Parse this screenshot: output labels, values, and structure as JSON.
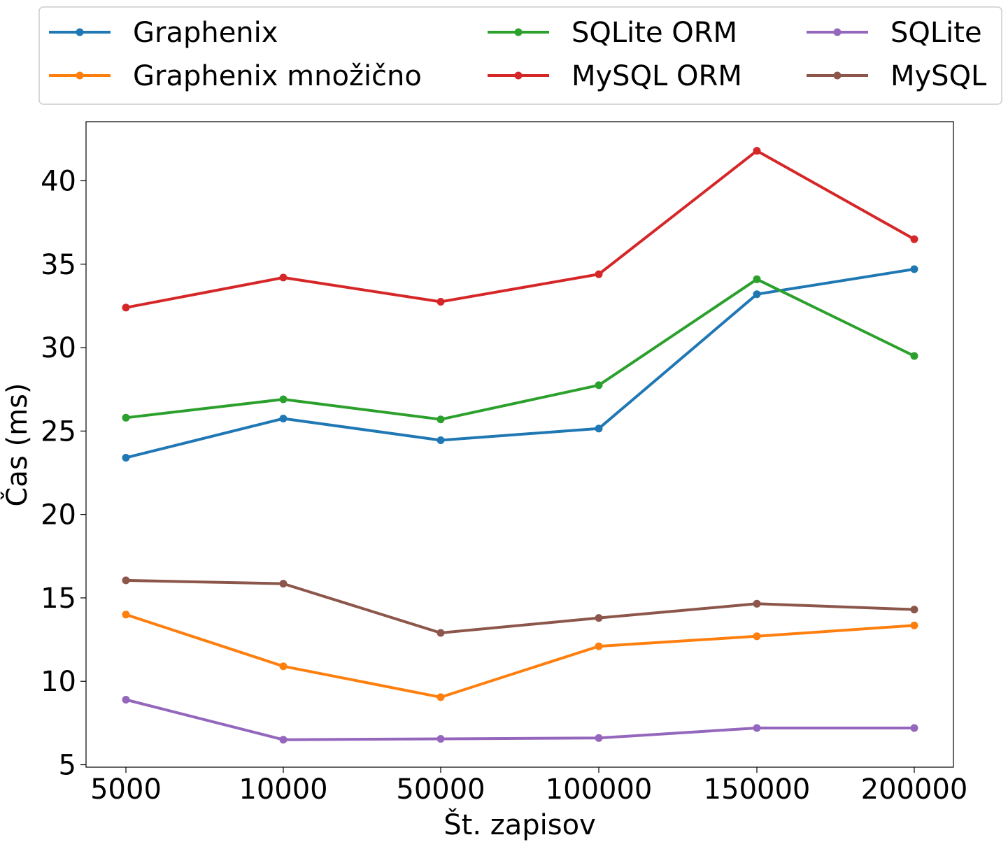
{
  "chart_data": {
    "type": "line",
    "xlabel": "Št. zapisov",
    "ylabel": "Čas (ms)",
    "categories": [
      "5000",
      "10000",
      "50000",
      "100000",
      "150000",
      "200000"
    ],
    "ylim": [
      4.9,
      43.5
    ],
    "yticks": [
      5,
      10,
      15,
      20,
      25,
      30,
      35,
      40
    ],
    "grid": false,
    "legend_position": "top, above the plot, 3 columns",
    "series": [
      {
        "name": "Graphenix",
        "color": "#1f77b4",
        "values": [
          23.4,
          25.75,
          24.45,
          25.15,
          33.2,
          34.7
        ]
      },
      {
        "name": "Graphenix množično",
        "color": "#ff7f0e",
        "values": [
          14.0,
          10.9,
          9.05,
          12.1,
          12.7,
          13.35
        ]
      },
      {
        "name": "SQLite ORM",
        "color": "#2ca02c",
        "values": [
          25.8,
          26.9,
          25.7,
          27.75,
          34.1,
          29.5
        ]
      },
      {
        "name": "MySQL ORM",
        "color": "#d62728",
        "values": [
          32.4,
          34.2,
          32.75,
          34.4,
          41.8,
          36.5
        ]
      },
      {
        "name": "SQLite",
        "color": "#9467bd",
        "values": [
          8.9,
          6.5,
          6.55,
          6.6,
          7.2,
          7.2
        ]
      },
      {
        "name": "MySQL",
        "color": "#8c564b",
        "values": [
          16.05,
          15.85,
          12.9,
          13.8,
          14.65,
          14.3
        ]
      }
    ]
  }
}
